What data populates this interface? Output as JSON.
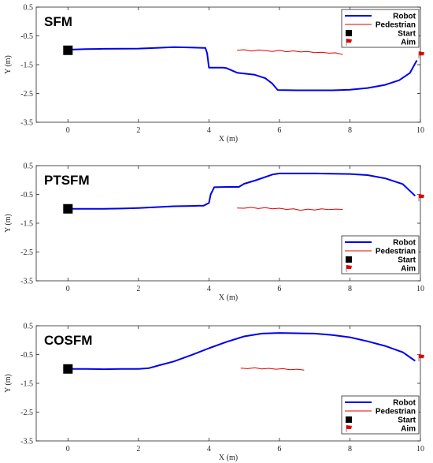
{
  "chart_data": [
    {
      "type": "line",
      "title": "SFM",
      "xlabel": "X (m)",
      "ylabel": "Y (m)",
      "xlim": [
        -0.9,
        10
      ],
      "ylim": [
        -3.5,
        0.5
      ],
      "x_ticks": [
        0,
        2,
        4,
        6,
        8,
        10
      ],
      "y_ticks": [
        0.5,
        -0.5,
        -1.5,
        -2.5,
        -3.5
      ],
      "grid": false,
      "legend": {
        "position": "top-right",
        "items": [
          "Robot",
          "Pedestrian",
          "Start",
          "Aim"
        ]
      },
      "series": [
        {
          "name": "Robot",
          "color": "#0000ee",
          "x": [
            0,
            0.5,
            1,
            2,
            2.5,
            3,
            3.4,
            3.9,
            3.95,
            4.0,
            4.4,
            4.5,
            4.8,
            5.3,
            5.6,
            5.8,
            5.95,
            6.5,
            7,
            7.5,
            8,
            8.5,
            9,
            9.4,
            9.7,
            9.9
          ],
          "y": [
            -0.98,
            -0.96,
            -0.95,
            -0.94,
            -0.92,
            -0.89,
            -0.9,
            -0.92,
            -1.1,
            -1.6,
            -1.6,
            -1.62,
            -1.78,
            -1.85,
            -1.97,
            -2.16,
            -2.38,
            -2.39,
            -2.39,
            -2.39,
            -2.37,
            -2.31,
            -2.2,
            -2.04,
            -1.79,
            -1.35
          ]
        },
        {
          "name": "Pedestrian",
          "color": "#e00000",
          "x": [
            4.8,
            5.0,
            5.2,
            5.4,
            5.6,
            5.8,
            6.0,
            6.2,
            6.4,
            6.6,
            6.8,
            7.0,
            7.2,
            7.4,
            7.6,
            7.8
          ],
          "y": [
            -1.0,
            -0.98,
            -1.03,
            -0.99,
            -1.01,
            -1.04,
            -1.0,
            -1.05,
            -1.02,
            -1.06,
            -1.04,
            -1.08,
            -1.07,
            -1.1,
            -1.09,
            -1.15
          ]
        }
      ],
      "start": {
        "x": 0,
        "y": -1.0
      },
      "aim": {
        "x": 10,
        "y": -1.15
      }
    },
    {
      "type": "line",
      "title": "PTSFM",
      "xlabel": "X (m)",
      "ylabel": "Y (m)",
      "xlim": [
        -0.9,
        10
      ],
      "ylim": [
        -3.5,
        0.5
      ],
      "x_ticks": [
        0,
        2,
        4,
        6,
        8,
        10
      ],
      "y_ticks": [
        0.5,
        -0.5,
        -1.5,
        -2.5,
        -3.5
      ],
      "grid": false,
      "legend": {
        "position": "bottom-right",
        "items": [
          "Robot",
          "Pedestrian",
          "Start",
          "Aim"
        ]
      },
      "series": [
        {
          "name": "Robot",
          "color": "#0000ee",
          "x": [
            0,
            0.5,
            1,
            1.5,
            2,
            2.5,
            3,
            3.5,
            3.85,
            4.0,
            4.05,
            4.15,
            4.5,
            4.85,
            5.0,
            5.3,
            5.8,
            6.0,
            6.5,
            7,
            7.5,
            8,
            8.5,
            9,
            9.5,
            9.85
          ],
          "y": [
            -1.0,
            -1.0,
            -1.0,
            -0.99,
            -0.97,
            -0.94,
            -0.91,
            -0.9,
            -0.89,
            -0.8,
            -0.5,
            -0.25,
            -0.24,
            -0.24,
            -0.13,
            -0.02,
            0.19,
            0.23,
            0.23,
            0.23,
            0.22,
            0.21,
            0.17,
            0.06,
            -0.14,
            -0.55
          ]
        },
        {
          "name": "Pedestrian",
          "color": "#e00000",
          "x": [
            4.8,
            5.0,
            5.2,
            5.4,
            5.6,
            5.8,
            6.0,
            6.2,
            6.4,
            6.6,
            6.8,
            7.0,
            7.2,
            7.4,
            7.6,
            7.8
          ],
          "y": [
            -0.97,
            -0.98,
            -0.95,
            -0.99,
            -0.96,
            -1.0,
            -0.98,
            -1.02,
            -1.0,
            -1.05,
            -1.01,
            -1.04,
            -1.0,
            -1.03,
            -1.01,
            -1.02
          ]
        }
      ],
      "start": {
        "x": 0,
        "y": -1.0
      },
      "aim": {
        "x": 10,
        "y": -0.6
      }
    },
    {
      "type": "line",
      "title": "COSFM",
      "xlabel": "X (m)",
      "ylabel": "Y (m)",
      "xlim": [
        -0.9,
        10
      ],
      "ylim": [
        -3.5,
        0.5
      ],
      "x_ticks": [
        0,
        2,
        4,
        6,
        8,
        10
      ],
      "y_ticks": [
        0.5,
        -0.5,
        -1.5,
        -2.5,
        -3.5
      ],
      "grid": false,
      "legend": {
        "position": "bottom-right",
        "items": [
          "Robot",
          "Pedestrian",
          "Start",
          "Aim"
        ]
      },
      "series": [
        {
          "name": "Robot",
          "color": "#0000ee",
          "x": [
            0,
            0.5,
            1,
            1.5,
            2,
            2.3,
            2.6,
            3,
            3.5,
            4,
            4.5,
            5,
            5.5,
            6,
            6.5,
            7,
            7.5,
            8,
            8.5,
            9,
            9.5,
            9.85
          ],
          "y": [
            -1.0,
            -1.0,
            -1.01,
            -1.0,
            -1.0,
            -0.97,
            -0.87,
            -0.74,
            -0.52,
            -0.28,
            -0.06,
            0.13,
            0.23,
            0.25,
            0.24,
            0.23,
            0.18,
            0.1,
            -0.04,
            -0.2,
            -0.42,
            -0.72
          ]
        },
        {
          "name": "Pedestrian",
          "color": "#e00000",
          "x": [
            4.9,
            5.1,
            5.3,
            5.5,
            5.7,
            5.9,
            6.1,
            6.3,
            6.5,
            6.7
          ],
          "y": [
            -0.97,
            -0.99,
            -0.96,
            -1.0,
            -0.98,
            -1.01,
            -0.99,
            -1.03,
            -1.01,
            -1.04
          ]
        }
      ],
      "start": {
        "x": 0,
        "y": -1.0
      },
      "aim": {
        "x": 10,
        "y": -0.6
      }
    }
  ]
}
